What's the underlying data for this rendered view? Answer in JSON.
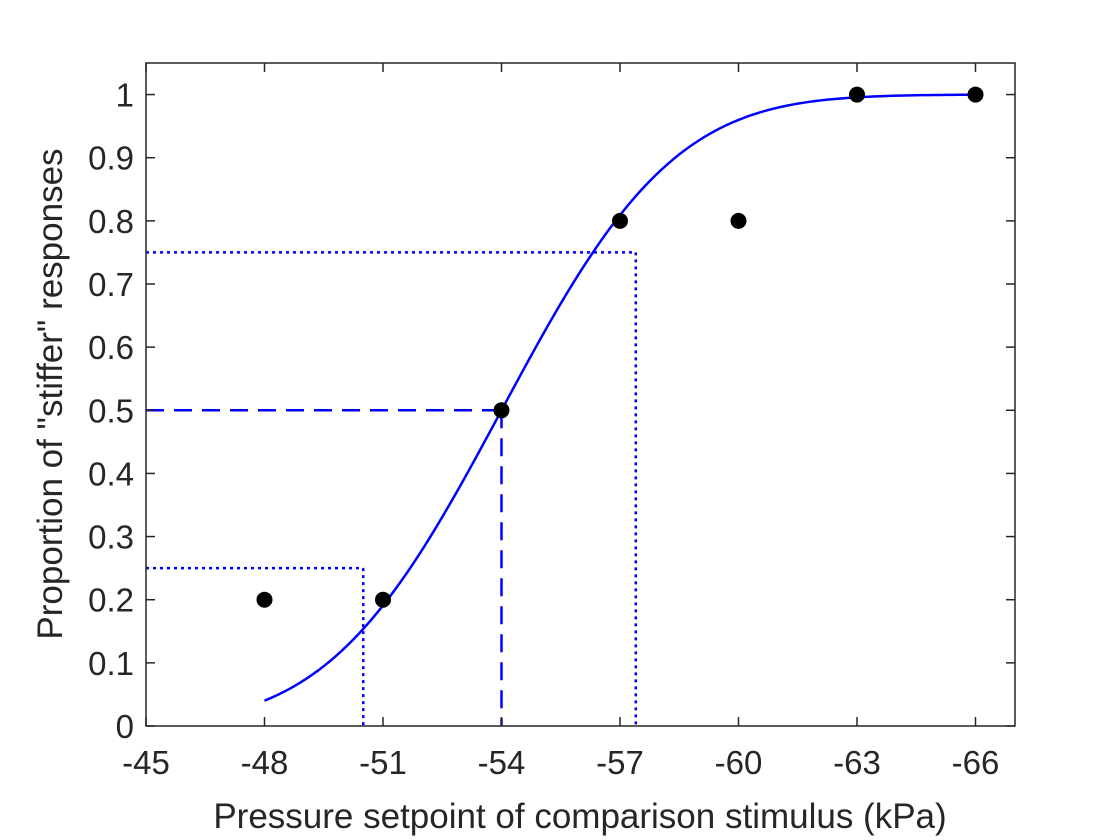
{
  "chart_data": {
    "type": "scatter",
    "title": "",
    "xlabel": "Pressure setpoint of comparison stimulus (kPa)",
    "ylabel": "Proportion of \"stiffer\" responses",
    "xlim": [
      -45,
      -67
    ],
    "x_reversed": true,
    "ylim": [
      0,
      1.05
    ],
    "x_ticks": [
      -45,
      -48,
      -51,
      -54,
      -57,
      -60,
      -63,
      -66
    ],
    "x_tick_labels": [
      "-45",
      "-48",
      "-51",
      "-54",
      "-57",
      "-60",
      "-63",
      "-66"
    ],
    "y_ticks": [
      0,
      0.1,
      0.2,
      0.3,
      0.4,
      0.5,
      0.6,
      0.7,
      0.8,
      0.9,
      1
    ],
    "y_tick_labels": [
      "0",
      "0.1",
      "0.2",
      "0.3",
      "0.4",
      "0.5",
      "0.6",
      "0.7",
      "0.8",
      "0.9",
      "1"
    ],
    "grid": false,
    "points": {
      "x": [
        -48,
        -51,
        -54,
        -57,
        -60,
        -63,
        -66
      ],
      "y": [
        0.2,
        0.2,
        0.5,
        0.8,
        0.8,
        1.0,
        1.0
      ],
      "color": "#000000"
    },
    "fit_curve": {
      "type": "cumulative-normal",
      "mu": -54,
      "sigma": 3.43,
      "x_range": [
        -48,
        -66
      ],
      "color": "#0000ff"
    },
    "reference_lines": [
      {
        "y": 0.25,
        "x": -50.5,
        "style": "dotted",
        "color": "#0000ff"
      },
      {
        "y": 0.5,
        "x": -54,
        "style": "dashed",
        "color": "#0000ff"
      },
      {
        "y": 0.75,
        "x": -57.4,
        "style": "dotted",
        "color": "#0000ff"
      }
    ]
  }
}
